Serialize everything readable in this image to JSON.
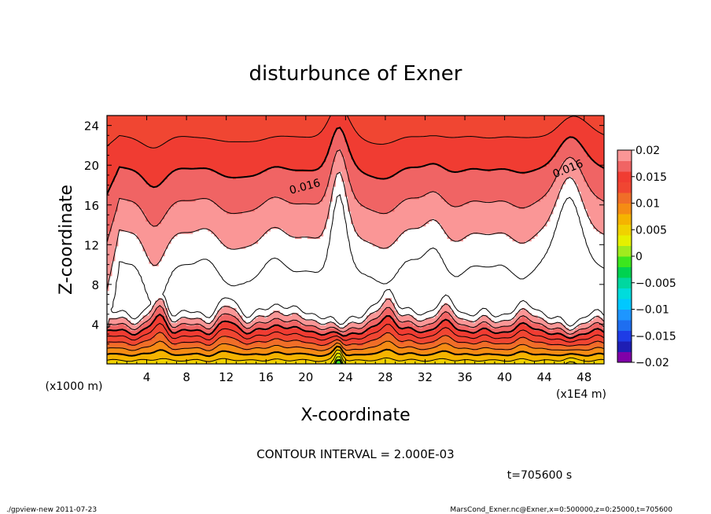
{
  "chart_data": {
    "type": "heatmap",
    "title": "disturbunce of Exner",
    "xlabel": "X-coordinate",
    "ylabel": "Z-coordinate",
    "x_unit": "(x1E4 m)",
    "y_unit": "(x1000 m)",
    "xlim": [
      0,
      50
    ],
    "ylim": [
      0,
      25
    ],
    "x_ticks": [
      4,
      8,
      12,
      16,
      20,
      24,
      28,
      32,
      36,
      40,
      44,
      48
    ],
    "x_tick_labels": [
      "4",
      "8",
      "12",
      "16",
      "20",
      "24",
      "28",
      "32",
      "36",
      "40",
      "44",
      "48"
    ],
    "y_ticks": [
      4,
      8,
      12,
      16,
      20,
      24
    ],
    "y_tick_labels": [
      "4",
      "8",
      "12",
      "16",
      "20",
      "24"
    ],
    "colorbar": {
      "range": [
        -0.02,
        0.02
      ],
      "ticks": [
        0.02,
        0.015,
        0.01,
        0.005,
        0,
        -0.005,
        -0.01,
        -0.015,
        -0.02
      ],
      "tick_labels": [
        "0.02",
        "0.015",
        "0.01",
        "0.005",
        "0",
        "−0.005",
        "−0.01",
        "−0.015",
        "−0.02"
      ],
      "colors": [
        "#7f00a8",
        "#1e1eb4",
        "#1e3ce6",
        "#1e6ef0",
        "#1e96ff",
        "#00c8ff",
        "#00dcdc",
        "#00d7a0",
        "#00d250",
        "#3ce61e",
        "#a0eb1e",
        "#e6f000",
        "#f0d200",
        "#f5b400",
        "#f58c14",
        "#f06e28",
        "#f04632",
        "#f03c32",
        "#f06464",
        "#fa9696"
      ]
    },
    "contour_interval": 0.002,
    "contour_labels": [
      {
        "text": "0.016",
        "x": 20.0,
        "z": 17.5
      },
      {
        "text": "0.016",
        "x": 46.5,
        "z": 19.3
      }
    ],
    "annotations": {
      "contour_interval_text": "CONTOUR INTERVAL = 2.000E-03",
      "time_text": "t=705600 s"
    }
  },
  "footer": {
    "left": "./gpview-new   2011-07-23",
    "right": "MarsCond_Exner.nc@Exner,x=0:500000,z=0:25000,t=705600"
  }
}
